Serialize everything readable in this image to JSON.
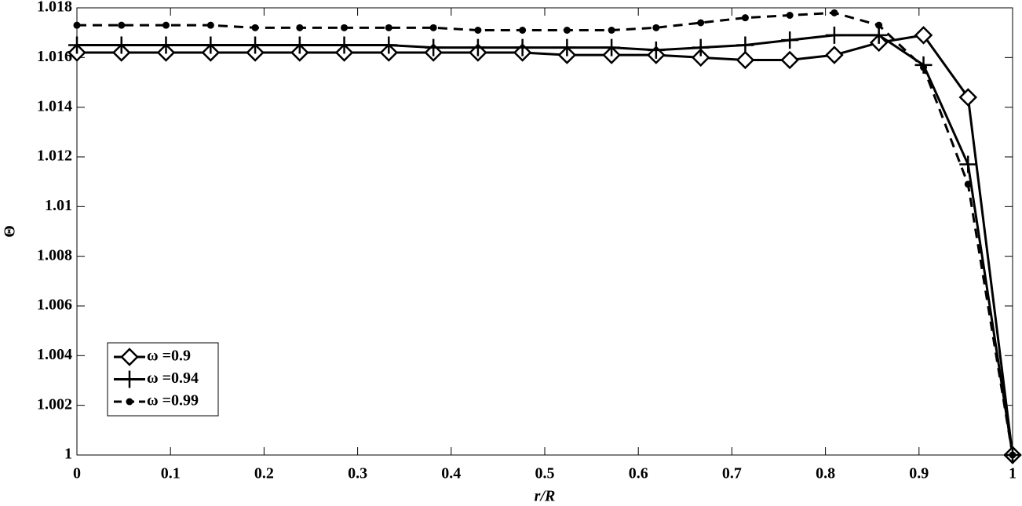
{
  "chart_data": {
    "type": "line",
    "xlabel": "r/R",
    "ylabel": "Θ",
    "x": [
      0,
      0.0476,
      0.0952,
      0.1429,
      0.1905,
      0.2381,
      0.2857,
      0.3333,
      0.381,
      0.4286,
      0.4762,
      0.5238,
      0.5714,
      0.619,
      0.6667,
      0.7143,
      0.7619,
      0.8095,
      0.8571,
      0.9048,
      0.9524,
      1
    ],
    "series": [
      {
        "name": "ω =0.9",
        "color": "#000000",
        "marker": "diamond",
        "linestyle": "solid",
        "values": [
          1.0162,
          1.0162,
          1.0162,
          1.0162,
          1.0162,
          1.0162,
          1.0162,
          1.0162,
          1.0162,
          1.0162,
          1.0162,
          1.0161,
          1.0161,
          1.0161,
          1.016,
          1.0159,
          1.0159,
          1.0161,
          1.0166,
          1.0169,
          1.0144,
          1
        ]
      },
      {
        "name": "ω =0.94",
        "color": "#000000",
        "marker": "plus",
        "linestyle": "solid",
        "values": [
          1.0165,
          1.0165,
          1.0165,
          1.0165,
          1.0165,
          1.0165,
          1.0165,
          1.0165,
          1.0164,
          1.0164,
          1.0164,
          1.0164,
          1.0164,
          1.0163,
          1.0164,
          1.0165,
          1.0167,
          1.0169,
          1.0169,
          1.0157,
          1.0117,
          1
        ]
      },
      {
        "name": "ω =0.99",
        "color": "#000000",
        "marker": "dot",
        "linestyle": "dashed",
        "values": [
          1.0173,
          1.0173,
          1.0173,
          1.0173,
          1.0172,
          1.0172,
          1.0172,
          1.0172,
          1.0172,
          1.0171,
          1.0171,
          1.0171,
          1.0171,
          1.0172,
          1.0174,
          1.0176,
          1.0177,
          1.0178,
          1.0173,
          1.0156,
          1.0109,
          1
        ]
      }
    ],
    "xlim": [
      0,
      1
    ],
    "xticks": [
      0,
      0.1,
      0.2,
      0.3,
      0.4,
      0.5,
      0.6,
      0.7,
      0.8,
      0.9,
      1
    ],
    "ylim": [
      1,
      1.018
    ],
    "yticks": [
      1,
      1.002,
      1.004,
      1.006,
      1.008,
      1.01,
      1.012,
      1.014,
      1.016,
      1.018
    ],
    "legend": "lower left",
    "grid": false
  }
}
